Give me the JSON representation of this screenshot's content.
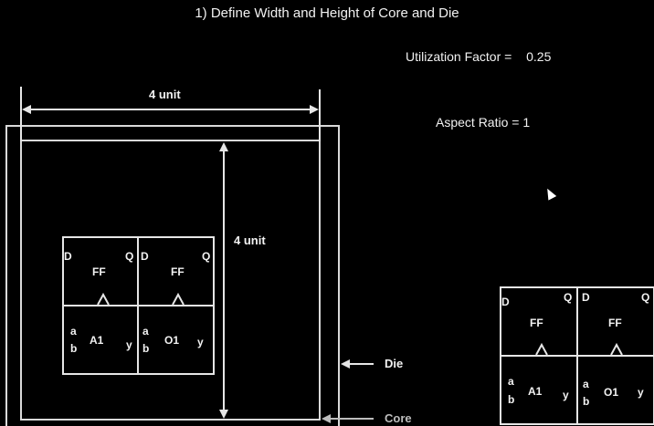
{
  "title": "1) Define Width and Height of Core and Die",
  "utilization": {
    "label": "Utilization Factor =",
    "value": "0.25"
  },
  "aspect_ratio": {
    "label": "Aspect Ratio =",
    "value": "1"
  },
  "width_label": "4 unit",
  "height_label": "4 unit",
  "die_label": "Die",
  "core_label": "Core",
  "cells": {
    "ff": {
      "d": "D",
      "q": "Q",
      "name": "FF",
      "clk": "^"
    },
    "and": {
      "a": "a",
      "b": "b",
      "name": "A1",
      "y": "y"
    },
    "or": {
      "a": "a",
      "b": "b",
      "name": "O1",
      "y": "y"
    }
  }
}
